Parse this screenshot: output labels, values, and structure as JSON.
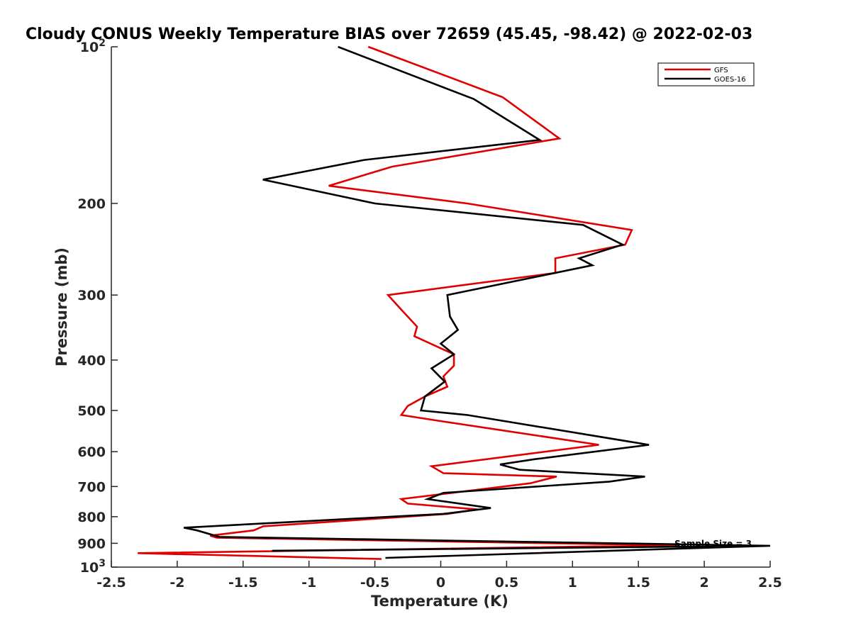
{
  "chart_data": {
    "type": "line",
    "title": "Cloudy CONUS Weekly Temperature BIAS over 72659 (45.45, -98.42) @ 2022-02-03",
    "xlabel": "Temperature (K)",
    "ylabel": "Pressure (mb)",
    "xlim": [
      -2.5,
      2.5
    ],
    "ylim": [
      100,
      1000
    ],
    "y_scale": "log",
    "y_reversed": true,
    "grid": false,
    "legend_position": "top-right",
    "x_ticks": [
      {
        "value": -2.5,
        "label": "-2.5"
      },
      {
        "value": -2,
        "label": "-2"
      },
      {
        "value": -1.5,
        "label": "-1.5"
      },
      {
        "value": -1,
        "label": "-1"
      },
      {
        "value": -0.5,
        "label": "-0.5"
      },
      {
        "value": 0,
        "label": "0"
      },
      {
        "value": 0.5,
        "label": "0.5"
      },
      {
        "value": 1,
        "label": "1"
      },
      {
        "value": 1.5,
        "label": "1.5"
      },
      {
        "value": 2,
        "label": "2"
      },
      {
        "value": 2.5,
        "label": "2.5"
      }
    ],
    "y_ticks": [
      {
        "value": 100,
        "base": "10",
        "exp": "2"
      },
      {
        "value": 200,
        "label": "200"
      },
      {
        "value": 300,
        "label": "300"
      },
      {
        "value": 400,
        "label": "400"
      },
      {
        "value": 500,
        "label": "500"
      },
      {
        "value": 600,
        "label": "600"
      },
      {
        "value": 700,
        "label": "700"
      },
      {
        "value": 800,
        "label": "800"
      },
      {
        "value": 900,
        "label": "900"
      },
      {
        "value": 1000,
        "base": "10",
        "exp": "3"
      }
    ],
    "series": [
      {
        "name": "GFS",
        "color": "#e00000",
        "points": [
          [
            -0.55,
            100
          ],
          [
            0.47,
            125
          ],
          [
            0.9,
            150
          ],
          [
            -0.37,
            170
          ],
          [
            -0.85,
            185
          ],
          [
            0.2,
            200
          ],
          [
            1.45,
            225
          ],
          [
            1.4,
            240
          ],
          [
            0.87,
            255
          ],
          [
            0.87,
            272
          ],
          [
            -0.4,
            300
          ],
          [
            -0.3,
            320
          ],
          [
            -0.18,
            345
          ],
          [
            -0.2,
            360
          ],
          [
            0.1,
            390
          ],
          [
            0.1,
            410
          ],
          [
            0.02,
            430
          ],
          [
            0.05,
            450
          ],
          [
            -0.12,
            470
          ],
          [
            -0.25,
            490
          ],
          [
            -0.3,
            510
          ],
          [
            0.02,
            525
          ],
          [
            1.2,
            582
          ],
          [
            -0.07,
            640
          ],
          [
            0.02,
            660
          ],
          [
            0.88,
            670
          ],
          [
            0.68,
            690
          ],
          [
            -0.3,
            740
          ],
          [
            -0.25,
            755
          ],
          [
            0.28,
            775
          ],
          [
            0.05,
            790
          ],
          [
            -1.35,
            835
          ],
          [
            -1.42,
            850
          ],
          [
            -1.75,
            870
          ],
          [
            -1.7,
            878
          ],
          [
            1.78,
            908
          ],
          [
            -2.3,
            940
          ],
          [
            -0.45,
            965
          ]
        ]
      },
      {
        "name": "GOES-16",
        "color": "#000000",
        "points": [
          [
            -0.78,
            100
          ],
          [
            0.25,
            126
          ],
          [
            0.75,
            151
          ],
          [
            -0.58,
            165
          ],
          [
            -1.35,
            180
          ],
          [
            -0.5,
            200
          ],
          [
            1.08,
            220
          ],
          [
            1.38,
            240
          ],
          [
            1.05,
            255
          ],
          [
            1.15,
            263
          ],
          [
            0.05,
            300
          ],
          [
            0.07,
            330
          ],
          [
            0.13,
            350
          ],
          [
            0.0,
            372
          ],
          [
            0.1,
            390
          ],
          [
            -0.07,
            415
          ],
          [
            0.03,
            440
          ],
          [
            -0.12,
            470
          ],
          [
            -0.15,
            500
          ],
          [
            0.2,
            510
          ],
          [
            1.58,
            582
          ],
          [
            0.72,
            620
          ],
          [
            0.45,
            635
          ],
          [
            0.6,
            650
          ],
          [
            1.55,
            670
          ],
          [
            1.28,
            685
          ],
          [
            0.02,
            720
          ],
          [
            -0.1,
            740
          ],
          [
            0.38,
            770
          ],
          [
            0.02,
            790
          ],
          [
            -1.95,
            840
          ],
          [
            -1.85,
            850
          ],
          [
            -1.68,
            875
          ],
          [
            2.5,
            910
          ],
          [
            -1.28,
            930
          ],
          [
            2.5,
            910
          ],
          [
            -0.42,
            960
          ]
        ]
      }
    ],
    "annotations": [
      "Sample Size = 3"
    ]
  }
}
